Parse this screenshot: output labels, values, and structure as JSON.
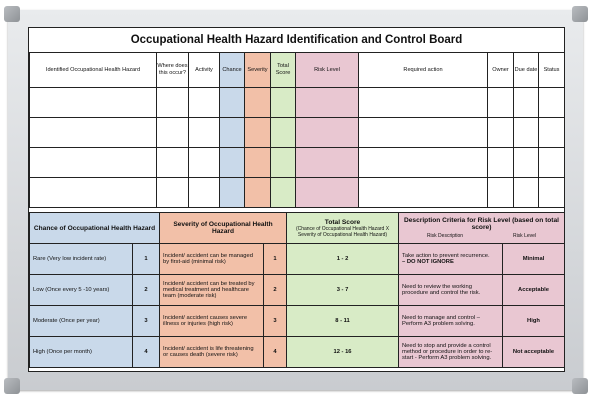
{
  "title": "Occupational Health Hazard Identification and Control Board",
  "top_headers": {
    "hazard": "Identified Occupational Health Hazard",
    "where": "Where does this occur?",
    "activity": "Activity",
    "chance": "Chance",
    "severity": "Severity",
    "total": "Total Score",
    "risk": "Risk Level",
    "action": "Required action",
    "owner": "Owner",
    "due": "Due date",
    "status": "Status"
  },
  "colors": {
    "chance": "#c9d9ea",
    "severity": "#f2c0a8",
    "total": "#d8ebc6",
    "risk": "#e9c7d2"
  },
  "bottom_headers": {
    "chance": "Chance of Occupational Health Hazard",
    "severity": "Severity of Occupational Health Hazard",
    "total": "Total Score",
    "total_sub": "(Chance of Occupational Health Hazard X Severity of Occupational Health Hazard)",
    "criteria": "Description Criteria for Risk Level (based on total score)",
    "risk_description": "Risk Description",
    "risk_level": "Risk Level"
  },
  "rows": [
    {
      "chance": "Rare (Very low incident rate)",
      "chance_num": "1",
      "severity": "Incident/ accident can be managed by first-aid (minimal risk)",
      "severity_num": "1",
      "score": "1 - 2",
      "description": "Take action to prevent recurrence.",
      "description_note": "– DO NOT IGNORE",
      "level": "Minimal"
    },
    {
      "chance": "Low (Once every 5 -10 years)",
      "chance_num": "2",
      "severity": "Incident/ accident can be treated by medical treatment and healthcare team (moderate risk)",
      "severity_num": "2",
      "score": "3 - 7",
      "description": "Need to review the working procedure and control the risk.",
      "description_note": "",
      "level": "Acceptable"
    },
    {
      "chance": "Moderate (Once per year)",
      "chance_num": "3",
      "severity": "Incident/ accident causes severe illness or injuries (high risk)",
      "severity_num": "3",
      "score": "8 - 11",
      "description": "Need to manage and control – Perform A3 problem solving.",
      "description_note": "",
      "level": "High"
    },
    {
      "chance": "High (Once per month)",
      "chance_num": "4",
      "severity": "Incident/ accident is life threatening or causes death (severe risk)",
      "severity_num": "4",
      "score": "12 - 16",
      "description": "Need to stop and provide a control method or procedure in order to re-start - Perform A3 problem solving.",
      "description_note": "",
      "level": "Not acceptable"
    }
  ]
}
